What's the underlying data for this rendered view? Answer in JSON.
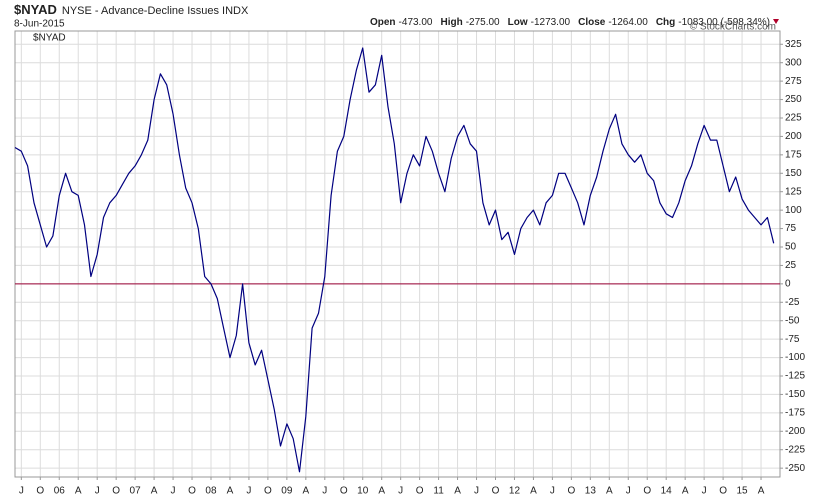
{
  "chart_data": {
    "type": "line",
    "title": "$NYAD",
    "subtitle": "NYSE - Advance-Decline Issues INDX",
    "date": "8-Jun-2015",
    "quote": [
      {
        "label": "Open",
        "value": "-473.00"
      },
      {
        "label": "High",
        "value": "-275.00"
      },
      {
        "label": "Low",
        "value": "-1273.00"
      },
      {
        "label": "Close",
        "value": "-1264.00"
      },
      {
        "label": "Chg",
        "value": "-1083.00 (-598.34%)"
      }
    ],
    "copyright": "© StockCharts.com",
    "legend": "$NYAD",
    "color": "#000080",
    "hline": 0,
    "hline_color": "#990033",
    "grid": true,
    "x": [
      "2005-06",
      "2005-07",
      "2005-08",
      "2005-09",
      "2005-10",
      "2005-11",
      "2005-12",
      "2006-01",
      "2006-02",
      "2006-03",
      "2006-04",
      "2006-05",
      "2006-06",
      "2006-07",
      "2006-08",
      "2006-09",
      "2006-10",
      "2006-11",
      "2006-12",
      "2007-01",
      "2007-02",
      "2007-03",
      "2007-04",
      "2007-05",
      "2007-06",
      "2007-07",
      "2007-08",
      "2007-09",
      "2007-10",
      "2007-11",
      "2007-12",
      "2008-01",
      "2008-02",
      "2008-03",
      "2008-04",
      "2008-05",
      "2008-06",
      "2008-07",
      "2008-08",
      "2008-09",
      "2008-10",
      "2008-11",
      "2008-12",
      "2009-01",
      "2009-02",
      "2009-03",
      "2009-04",
      "2009-05",
      "2009-06",
      "2009-07",
      "2009-08",
      "2009-09",
      "2009-10",
      "2009-11",
      "2009-12",
      "2010-01",
      "2010-02",
      "2010-03",
      "2010-04",
      "2010-05",
      "2010-06",
      "2010-07",
      "2010-08",
      "2010-09",
      "2010-10",
      "2010-11",
      "2010-12",
      "2011-01",
      "2011-02",
      "2011-03",
      "2011-04",
      "2011-05",
      "2011-06",
      "2011-07",
      "2011-08",
      "2011-09",
      "2011-10",
      "2011-11",
      "2011-12",
      "2012-01",
      "2012-02",
      "2012-03",
      "2012-04",
      "2012-05",
      "2012-06",
      "2012-07",
      "2012-08",
      "2012-09",
      "2012-10",
      "2012-11",
      "2012-12",
      "2013-01",
      "2013-02",
      "2013-03",
      "2013-04",
      "2013-05",
      "2013-06",
      "2013-07",
      "2013-08",
      "2013-09",
      "2013-10",
      "2013-11",
      "2013-12",
      "2014-01",
      "2014-02",
      "2014-03",
      "2014-04",
      "2014-05",
      "2014-06",
      "2014-07",
      "2014-08",
      "2014-09",
      "2014-10",
      "2014-11",
      "2014-12",
      "2015-01",
      "2015-02",
      "2015-03",
      "2015-04",
      "2015-05",
      "2015-06"
    ],
    "values": [
      185,
      180,
      160,
      110,
      80,
      50,
      65,
      120,
      150,
      125,
      120,
      80,
      10,
      40,
      90,
      110,
      120,
      135,
      150,
      160,
      175,
      195,
      250,
      285,
      270,
      230,
      175,
      130,
      110,
      75,
      10,
      0,
      -20,
      -60,
      -100,
      -70,
      0,
      -80,
      -110,
      -90,
      -130,
      -170,
      -220,
      -190,
      -210,
      -255,
      -180,
      -60,
      -40,
      10,
      120,
      180,
      200,
      250,
      290,
      320,
      260,
      270,
      310,
      240,
      190,
      110,
      150,
      175,
      160,
      200,
      180,
      150,
      125,
      170,
      200,
      215,
      190,
      180,
      110,
      80,
      100,
      60,
      70,
      40,
      75,
      90,
      100,
      80,
      110,
      120,
      150,
      150,
      130,
      110,
      80,
      120,
      145,
      180,
      210,
      230,
      190,
      175,
      165,
      175,
      150,
      140,
      110,
      95,
      90,
      110,
      140,
      160,
      190,
      215,
      195,
      195,
      160,
      125,
      145,
      115,
      100,
      90,
      80,
      90,
      55
    ],
    "xlim": [
      "2005-06",
      "2015-07"
    ],
    "xticks": [
      {
        "value": "2005-07",
        "label": "J"
      },
      {
        "value": "2005-10",
        "label": "O"
      },
      {
        "value": "2006-01",
        "label": "06"
      },
      {
        "value": "2006-04",
        "label": "A"
      },
      {
        "value": "2006-07",
        "label": "J"
      },
      {
        "value": "2006-10",
        "label": "O"
      },
      {
        "value": "2007-01",
        "label": "07"
      },
      {
        "value": "2007-04",
        "label": "A"
      },
      {
        "value": "2007-07",
        "label": "J"
      },
      {
        "value": "2007-10",
        "label": "O"
      },
      {
        "value": "2008-01",
        "label": "08"
      },
      {
        "value": "2008-04",
        "label": "A"
      },
      {
        "value": "2008-07",
        "label": "J"
      },
      {
        "value": "2008-10",
        "label": "O"
      },
      {
        "value": "2009-01",
        "label": "09"
      },
      {
        "value": "2009-04",
        "label": "A"
      },
      {
        "value": "2009-07",
        "label": "J"
      },
      {
        "value": "2009-10",
        "label": "O"
      },
      {
        "value": "2010-01",
        "label": "10"
      },
      {
        "value": "2010-04",
        "label": "A"
      },
      {
        "value": "2010-07",
        "label": "J"
      },
      {
        "value": "2010-10",
        "label": "O"
      },
      {
        "value": "2011-01",
        "label": "11"
      },
      {
        "value": "2011-04",
        "label": "A"
      },
      {
        "value": "2011-07",
        "label": "J"
      },
      {
        "value": "2011-10",
        "label": "O"
      },
      {
        "value": "2012-01",
        "label": "12"
      },
      {
        "value": "2012-04",
        "label": "A"
      },
      {
        "value": "2012-07",
        "label": "J"
      },
      {
        "value": "2012-10",
        "label": "O"
      },
      {
        "value": "2013-01",
        "label": "13"
      },
      {
        "value": "2013-04",
        "label": "A"
      },
      {
        "value": "2013-07",
        "label": "J"
      },
      {
        "value": "2013-10",
        "label": "O"
      },
      {
        "value": "2014-01",
        "label": "14"
      },
      {
        "value": "2014-04",
        "label": "A"
      },
      {
        "value": "2014-07",
        "label": "J"
      },
      {
        "value": "2014-10",
        "label": "O"
      },
      {
        "value": "2015-01",
        "label": "15"
      },
      {
        "value": "2015-04",
        "label": "A"
      }
    ],
    "ylim": [
      -262,
      343
    ],
    "yticks": [
      -250,
      -225,
      -200,
      -175,
      -150,
      -125,
      -100,
      -75,
      -50,
      -25,
      0,
      25,
      50,
      75,
      100,
      125,
      150,
      175,
      200,
      225,
      250,
      275,
      300,
      325
    ]
  }
}
